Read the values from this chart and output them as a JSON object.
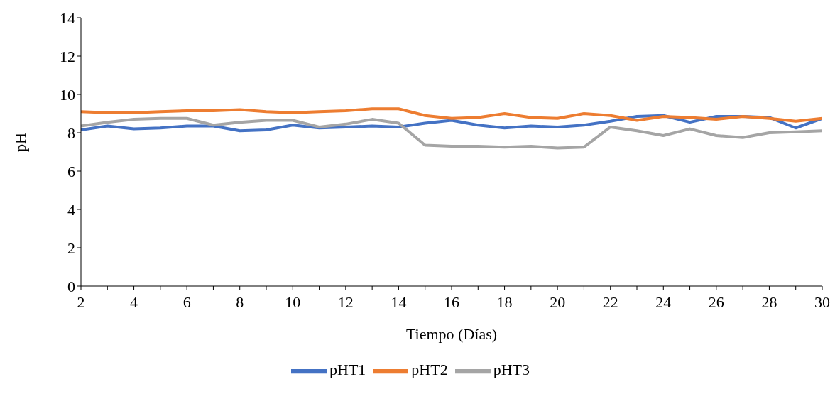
{
  "chart_data": {
    "type": "line",
    "xlabel": "Tiempo (Días)",
    "ylabel": "pH",
    "x": [
      2,
      3,
      4,
      5,
      6,
      7,
      8,
      9,
      10,
      11,
      12,
      13,
      14,
      15,
      16,
      17,
      18,
      19,
      20,
      21,
      22,
      23,
      24,
      25,
      26,
      27,
      28,
      29,
      30
    ],
    "series": [
      {
        "name": "pHT1",
        "color": "#4472c4",
        "values": [
          8.15,
          8.35,
          8.2,
          8.25,
          8.35,
          8.35,
          8.1,
          8.15,
          8.4,
          8.25,
          8.3,
          8.35,
          8.3,
          8.5,
          8.65,
          8.4,
          8.25,
          8.35,
          8.3,
          8.4,
          8.6,
          8.85,
          8.9,
          8.55,
          8.85,
          8.85,
          8.8,
          8.25,
          8.75
        ]
      },
      {
        "name": "pHT2",
        "color": "#ed7d31",
        "values": [
          9.1,
          9.05,
          9.05,
          9.1,
          9.15,
          9.15,
          9.2,
          9.1,
          9.05,
          9.1,
          9.15,
          9.25,
          9.25,
          8.9,
          8.75,
          8.8,
          9.0,
          8.8,
          8.75,
          9.0,
          8.9,
          8.65,
          8.85,
          8.8,
          8.7,
          8.85,
          8.75,
          8.6,
          8.75
        ]
      },
      {
        "name": "pHT3",
        "color": "#a5a5a5",
        "values": [
          8.35,
          8.55,
          8.7,
          8.75,
          8.75,
          8.4,
          8.55,
          8.65,
          8.65,
          8.3,
          8.45,
          8.7,
          8.5,
          7.35,
          7.3,
          7.3,
          7.25,
          7.3,
          7.2,
          7.25,
          8.3,
          8.1,
          7.85,
          8.2,
          7.85,
          7.75,
          8.0,
          8.05,
          8.1
        ]
      }
    ],
    "xlim": [
      2,
      30
    ],
    "xticks": [
      2,
      {
        "value": 3,
        "label": null
      },
      4,
      {
        "value": 5,
        "label": null
      },
      6,
      {
        "value": 7,
        "label": null
      },
      8,
      {
        "value": 9,
        "label": null
      },
      10,
      {
        "value": 11,
        "label": null
      },
      12,
      {
        "value": 13,
        "label": null
      },
      14,
      {
        "value": 15,
        "label": null
      },
      16,
      {
        "value": 17,
        "label": null
      },
      18,
      {
        "value": 19,
        "label": null
      },
      20,
      {
        "value": 21,
        "label": null
      },
      22,
      {
        "value": 23,
        "label": null
      },
      24,
      {
        "value": 25,
        "label": null
      },
      26,
      {
        "value": 27,
        "label": null
      },
      28,
      {
        "value": 29,
        "label": null
      },
      30
    ],
    "ylim": [
      0,
      14
    ],
    "yticks": [
      0,
      2,
      4,
      6,
      8,
      10,
      12,
      14
    ],
    "grid": false,
    "legend": "bottom",
    "marker": "none",
    "line_style": "solid"
  }
}
